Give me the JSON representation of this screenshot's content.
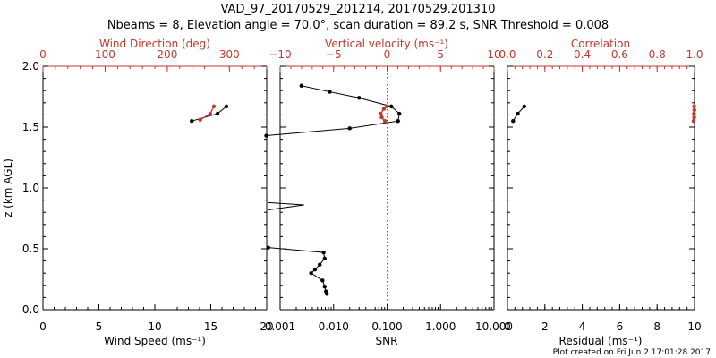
{
  "title": "VAD_97_20170529_201214, 20170529.201310",
  "subtitle": "Nbeams = 8, Elevation angle = 70.0°, scan duration = 89.2 s, SNR Threshold = 0.008",
  "footer": "Plot created on Fri Jun  2 17:01:28 2017",
  "colors": {
    "black": "#000000",
    "red": "#c0392b"
  },
  "chart_data": [
    {
      "type": "line",
      "panel": "wind",
      "ylabel": "z (km AGL)",
      "ylim": [
        0.0,
        2.0
      ],
      "yticks": [
        "0.0",
        "0.5",
        "1.0",
        "1.5",
        "2.0"
      ],
      "bottom_axis": {
        "label": "Wind Speed (ms⁻¹)",
        "range": [
          0,
          20
        ],
        "ticks": [
          "0",
          "5",
          "10",
          "15",
          "20"
        ]
      },
      "top_axis": {
        "label": "Wind Direction (deg)",
        "range": [
          0,
          360
        ],
        "ticks": [
          "0",
          "100",
          "200",
          "300"
        ],
        "color": "#c0392b"
      },
      "series": [
        {
          "axis": "bottom",
          "color": "#000000",
          "points": [
            [
              13.3,
              1.55
            ],
            [
              15.6,
              1.61
            ],
            [
              16.4,
              1.67
            ]
          ]
        },
        {
          "axis": "top",
          "color": "#c0392b",
          "points": [
            [
              253,
              1.56
            ],
            [
              269,
              1.61
            ],
            [
              275,
              1.67
            ]
          ]
        }
      ]
    },
    {
      "type": "line",
      "panel": "snr",
      "ylim": [
        0.0,
        2.0
      ],
      "bottom_axis": {
        "label": "SNR",
        "scale": "log",
        "range": [
          0.001,
          10
        ],
        "ticks": [
          "0.001",
          "0.010",
          "0.100",
          "1.000",
          "10.000"
        ]
      },
      "top_axis": {
        "label": "Vertical velocity (ms⁻¹)",
        "range": [
          -10,
          10
        ],
        "ticks": [
          "−10",
          "−5",
          "0",
          "5",
          "10"
        ],
        "color": "#c0392b",
        "zero_line": true
      },
      "series": [
        {
          "axis": "bottom",
          "color": "#000000",
          "points": [
            [
              0.00055,
              1.43
            ],
            [
              0.02,
              1.49
            ],
            [
              0.16,
              1.55
            ],
            [
              0.17,
              1.61
            ],
            [
              0.12,
              1.67
            ],
            [
              0.03,
              1.74
            ],
            [
              0.0085,
              1.79
            ],
            [
              0.0025,
              1.84
            ]
          ]
        },
        {
          "axis": "bottom",
          "color": "#000000",
          "markers": false,
          "points": [
            [
              0.0006,
              0.82
            ],
            [
              0.0028,
              0.86
            ],
            [
              0.0006,
              0.88
            ]
          ]
        },
        {
          "axis": "bottom",
          "color": "#000000",
          "points": [
            [
              0.0006,
              0.51
            ],
            [
              0.0065,
              0.47
            ],
            [
              0.0068,
              0.42
            ],
            [
              0.0055,
              0.37
            ],
            [
              0.0045,
              0.33
            ],
            [
              0.0038,
              0.3
            ],
            [
              0.0062,
              0.24
            ],
            [
              0.0068,
              0.19
            ],
            [
              0.0072,
              0.15
            ],
            [
              0.0075,
              0.13
            ]
          ]
        },
        {
          "axis": "top",
          "color": "#c0392b",
          "points": [
            [
              -0.2,
              1.55
            ],
            [
              -0.5,
              1.58
            ],
            [
              -0.6,
              1.61
            ],
            [
              -0.3,
              1.65
            ],
            [
              0.0,
              1.67
            ]
          ]
        }
      ]
    },
    {
      "type": "line",
      "panel": "residual",
      "ylim": [
        0.0,
        2.0
      ],
      "bottom_axis": {
        "label": "Residual (ms⁻¹)",
        "range": [
          0,
          10
        ],
        "ticks": [
          "0",
          "2",
          "4",
          "6",
          "8",
          "10"
        ]
      },
      "top_axis": {
        "label": "Correlation",
        "range": [
          0.0,
          1.0
        ],
        "ticks": [
          "0.0",
          "0.2",
          "0.4",
          "0.6",
          "0.8",
          "1.0"
        ],
        "color": "#c0392b"
      },
      "series": [
        {
          "axis": "bottom",
          "color": "#000000",
          "points": [
            [
              0.3,
              1.55
            ],
            [
              0.55,
              1.61
            ],
            [
              0.9,
              1.67
            ]
          ]
        },
        {
          "axis": "top",
          "color": "#c0392b",
          "points": [
            [
              0.995,
              1.55
            ],
            [
              0.998,
              1.58
            ],
            [
              0.997,
              1.61
            ],
            [
              0.999,
              1.64
            ],
            [
              0.998,
              1.67
            ]
          ]
        }
      ]
    }
  ]
}
